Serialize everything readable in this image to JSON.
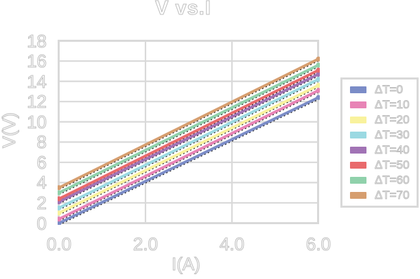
{
  "colors": {
    "background": "#ffffff",
    "grid": "#d9d9d9",
    "plot_border": "#d9d9d9",
    "text_outline": "#bdbdbd",
    "trendline": "#1a1a1a"
  },
  "chart_data": {
    "type": "line",
    "title": "V vs.I",
    "xlabel": "I(A)",
    "ylabel": "V(V)",
    "xlim": [
      0,
      6
    ],
    "ylim": [
      0,
      18
    ],
    "grid": true,
    "legend_position": "right-outside",
    "x_ticks": [
      {
        "value": 0,
        "label": "0.0"
      },
      {
        "value": 2,
        "label": "2.0"
      },
      {
        "value": 4,
        "label": "4.0"
      },
      {
        "value": 6,
        "label": "6.0"
      }
    ],
    "y_ticks": [
      {
        "value": 18,
        "label": "18"
      },
      {
        "value": 16,
        "label": "16"
      },
      {
        "value": 14,
        "label": "14"
      },
      {
        "value": 12,
        "label": "12"
      },
      {
        "value": 10,
        "label": "10"
      },
      {
        "value": 8,
        "label": "8"
      },
      {
        "value": 6,
        "label": "6"
      },
      {
        "value": 4,
        "label": "4"
      },
      {
        "value": 2,
        "label": "2"
      },
      {
        "value": 0,
        "label": "0"
      }
    ],
    "series": [
      {
        "name": "ΔT=0",
        "color": "#7b8cc7",
        "points": [
          [
            0,
            0.0
          ],
          [
            6,
            12.4
          ]
        ]
      },
      {
        "name": "ΔT=10",
        "color": "#e884b6",
        "points": [
          [
            0,
            0.4
          ],
          [
            6,
            13.1
          ]
        ]
      },
      {
        "name": "ΔT=20",
        "color": "#f9f29d",
        "points": [
          [
            0,
            1.0
          ],
          [
            6,
            13.6
          ]
        ]
      },
      {
        "name": "ΔT=30",
        "color": "#9bd9e2",
        "points": [
          [
            0,
            1.5
          ],
          [
            6,
            14.2
          ]
        ]
      },
      {
        "name": "ΔT=40",
        "color": "#a173b5",
        "points": [
          [
            0,
            2.1
          ],
          [
            6,
            14.7
          ]
        ]
      },
      {
        "name": "ΔT=50",
        "color": "#e96a6c",
        "points": [
          [
            0,
            2.4
          ],
          [
            6,
            15.1
          ]
        ]
      },
      {
        "name": "ΔT=60",
        "color": "#90d1ab",
        "points": [
          [
            0,
            3.0
          ],
          [
            6,
            15.6
          ]
        ]
      },
      {
        "name": "ΔT=70",
        "color": "#d69e6f",
        "points": [
          [
            0,
            3.5
          ],
          [
            6,
            16.2
          ]
        ]
      }
    ],
    "trendlines": {
      "style": "dashed",
      "color": "#1a1a1a",
      "per_series": true
    }
  }
}
